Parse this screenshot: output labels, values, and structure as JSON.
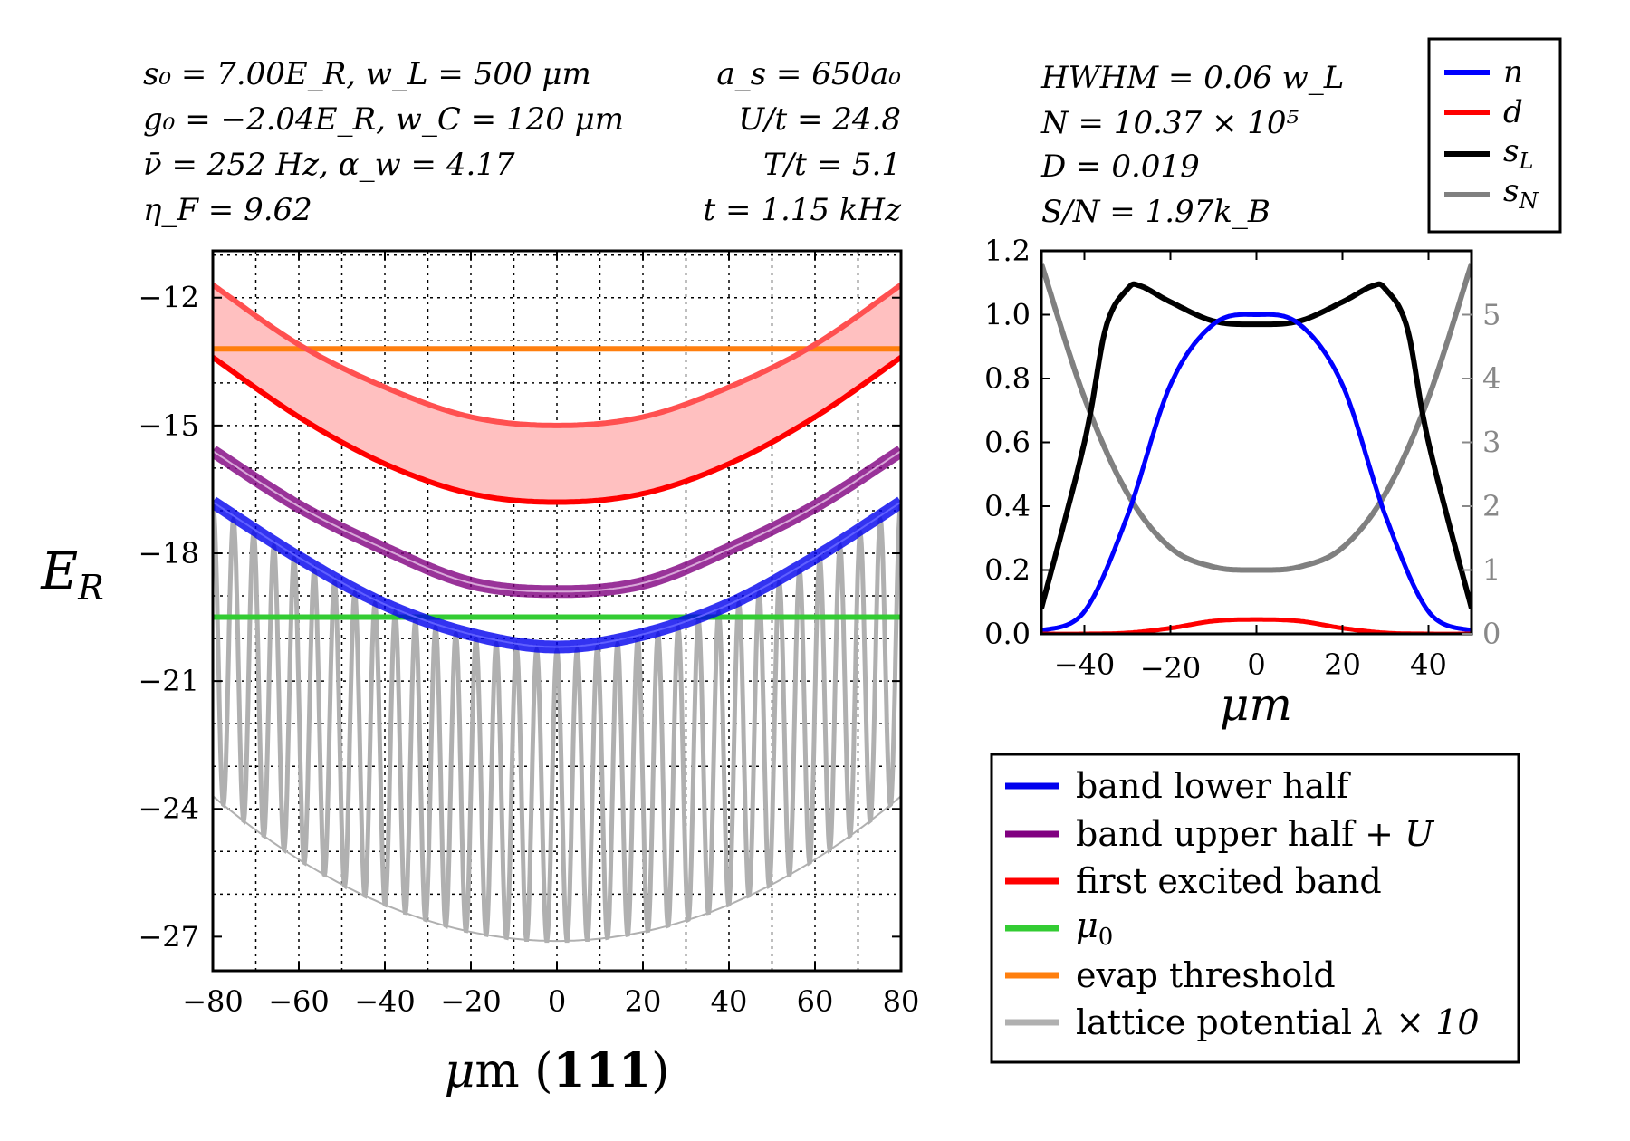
{
  "left_params": {
    "col1": [
      "s₀ = 7.00E_R, w_L = 500 μm",
      "g₀ = −2.04E_R, w_C = 120 μm",
      "ν̄ = 252 Hz, α_w = 4.17",
      "η_F = 9.62"
    ],
    "col2": [
      "a_s = 650a₀",
      "U/t = 24.8",
      "T/t = 5.1",
      "t = 1.15 kHz"
    ]
  },
  "right_params": [
    "HWHM = 0.06 w_L",
    "N = 10.37 × 10⁵",
    "D = 0.019",
    "S/N = 1.97k_B"
  ],
  "colors": {
    "band_lower": "#0000ee",
    "band_upper": "#800080",
    "excited": "#ff0000",
    "excited_fill": "#ffc0c0",
    "mu0": "#33cc33",
    "evap": "#ff7f0e",
    "lattice": "#b0b0b0",
    "n": "#0000ff",
    "d": "#ff0000",
    "sL": "#000000",
    "sN": "#808080"
  },
  "chart_data": [
    {
      "type": "line",
      "xlabel": "μm (111)",
      "ylabel": "E_R",
      "xlim": [
        -80,
        80
      ],
      "ylim": [
        -27.8,
        -10.9
      ],
      "xticks": [
        -80,
        -60,
        -40,
        -20,
        0,
        20,
        40,
        60,
        80
      ],
      "xtick_labels": [
        "−80",
        "−60",
        "−40",
        "−20",
        "0",
        "20",
        "40",
        "60",
        "80"
      ],
      "yticks": [
        -12,
        -15,
        -18,
        -21,
        -24,
        -27
      ],
      "ytick_labels": [
        "−12",
        "−15",
        "−18",
        "−21",
        "−24",
        "−27"
      ],
      "grid": true,
      "series": [
        {
          "name": "band lower half",
          "x": [
            -80,
            -60,
            -40,
            -20,
            0,
            20,
            40,
            60,
            80
          ],
          "y": [
            -16.8,
            -18.1,
            -19.2,
            -19.9,
            -20.2,
            -19.9,
            -19.2,
            -18.1,
            -16.8
          ]
        },
        {
          "name": "band upper half + U",
          "x": [
            -80,
            -60,
            -40,
            -20,
            0,
            20,
            40,
            60,
            80
          ],
          "y": [
            -15.6,
            -16.9,
            -17.9,
            -18.7,
            -18.9,
            -18.7,
            -17.9,
            -16.9,
            -15.6
          ]
        },
        {
          "name": "first excited band",
          "x": [
            -80,
            -60,
            -40,
            -20,
            0,
            20,
            40,
            60,
            80
          ],
          "y_low": [
            -13.4,
            -14.8,
            -15.9,
            -16.6,
            -16.8,
            -16.6,
            -15.9,
            -14.8,
            -13.4
          ],
          "y_high": [
            -11.7,
            -13.1,
            -14.1,
            -14.8,
            -15.0,
            -14.8,
            -14.1,
            -13.1,
            -11.7
          ]
        },
        {
          "name": "μ₀",
          "x": [
            -80,
            80
          ],
          "y": [
            -19.5,
            -19.5
          ]
        },
        {
          "name": "evap threshold",
          "x": [
            -80,
            80
          ],
          "y": [
            -13.2,
            -13.2
          ]
        },
        {
          "name": "lattice potential  λ × 10",
          "envelope_bottom": [
            -23.7,
            -27.1
          ],
          "period": 4.7
        }
      ],
      "legend": {
        "placement": "lower-right outside",
        "entries": [
          "band lower half",
          "band upper half + U",
          "first excited band",
          "μ₀",
          "evap threshold",
          "lattice potential  λ × 10"
        ]
      }
    },
    {
      "type": "line",
      "xlabel": "μm",
      "xlim": [
        -50,
        50
      ],
      "ylim": [
        0,
        1.2
      ],
      "y2lim": [
        0,
        6
      ],
      "xticks": [
        -40,
        -20,
        0,
        20,
        40
      ],
      "xtick_labels": [
        "−40",
        "−20",
        "0",
        "20",
        "40"
      ],
      "yticks": [
        0.0,
        0.2,
        0.4,
        0.6,
        0.8,
        1.0,
        1.2
      ],
      "ytick_labels": [
        "0.0",
        "0.2",
        "0.4",
        "0.6",
        "0.8",
        "1.0",
        "1.2"
      ],
      "y2ticks": [
        0,
        1,
        2,
        3,
        4,
        5
      ],
      "y2tick_labels": [
        "0",
        "1",
        "2",
        "3",
        "4",
        "5"
      ],
      "series": [
        {
          "name": "n",
          "x": [
            -50,
            -40,
            -30,
            -20,
            -10,
            0,
            10,
            20,
            30,
            40,
            50
          ],
          "y": [
            0.01,
            0.07,
            0.37,
            0.78,
            0.97,
            1.0,
            0.97,
            0.78,
            0.37,
            0.07,
            0.01
          ]
        },
        {
          "name": "d",
          "x": [
            -50,
            -40,
            -30,
            -20,
            -10,
            0,
            10,
            20,
            30,
            40,
            50
          ],
          "y": [
            0.0,
            0.0,
            0.003,
            0.018,
            0.04,
            0.045,
            0.04,
            0.018,
            0.003,
            0.0,
            0.0
          ]
        },
        {
          "name": "s_L",
          "x": [
            -50,
            -40,
            -35,
            -30,
            -27,
            -20,
            -10,
            0,
            10,
            20,
            27,
            30,
            35,
            40,
            50
          ],
          "y": [
            0.08,
            0.6,
            0.96,
            1.08,
            1.09,
            1.04,
            0.98,
            0.97,
            0.98,
            1.04,
            1.09,
            1.08,
            0.96,
            0.6,
            0.08
          ]
        },
        {
          "name": "s_N",
          "x": [
            -50,
            -40,
            -30,
            -20,
            -10,
            0,
            10,
            20,
            30,
            40,
            50
          ],
          "y2": [
            5.8,
            3.7,
            2.2,
            1.35,
            1.05,
            1.0,
            1.05,
            1.35,
            2.2,
            3.7,
            5.8
          ]
        }
      ],
      "legend": {
        "placement": "top-right outside",
        "entries": [
          "n",
          "d",
          "s_L",
          "s_N"
        ]
      }
    }
  ],
  "legend_text": {
    "lower": "band lower half",
    "upper": "band upper half + ",
    "upper_U": "U",
    "excited": "first excited band",
    "mu0": "μ",
    "mu0_sub": "0",
    "evap": "evap threshold",
    "lattice": "lattice potential  ",
    "lattice_math": "λ × 10",
    "n": "n",
    "d": "d",
    "sL": "s",
    "sL_sub": "L",
    "sN": "s",
    "sN_sub": "N"
  }
}
